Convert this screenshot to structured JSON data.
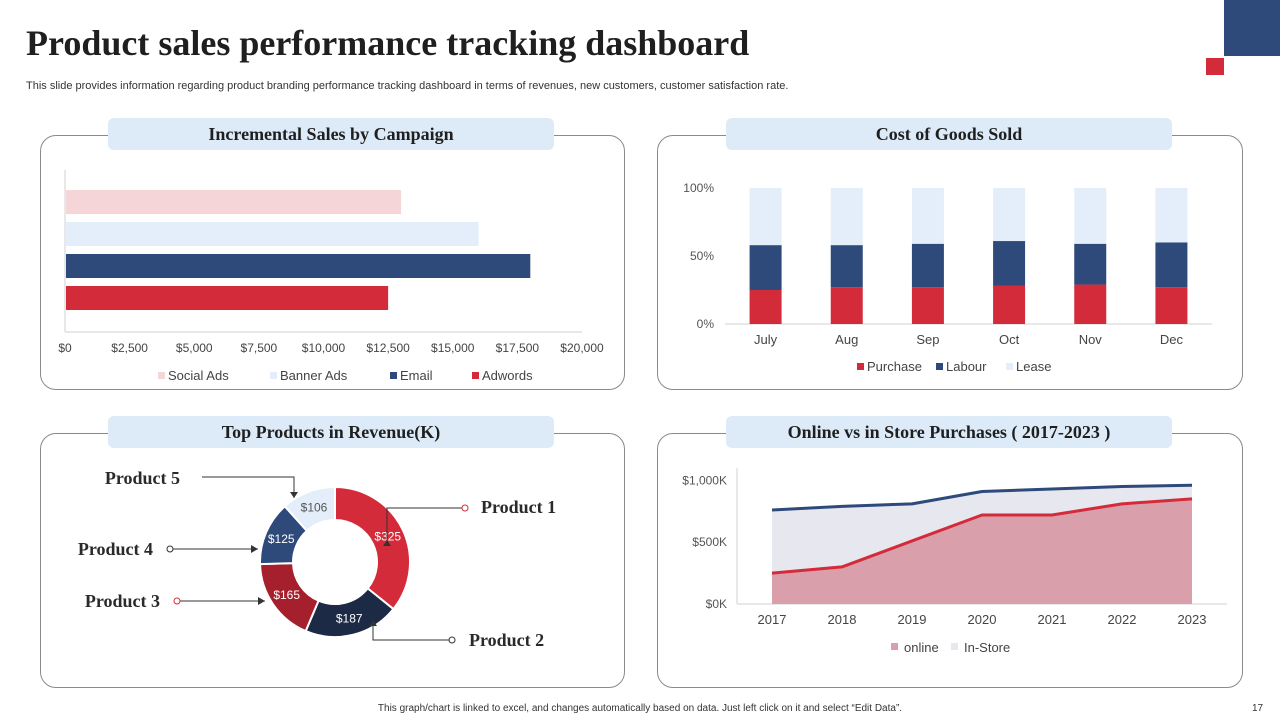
{
  "header": {
    "title": "Product sales performance tracking dashboard",
    "subtitle": "This slide provides information regarding product branding performance tracking dashboard in terms of revenues, new customers, customer satisfaction rate."
  },
  "footer": {
    "note": "This graph/chart is linked to excel, and changes automatically based on data. Just left click on it and select “Edit Data”.",
    "page_number": "17"
  },
  "colors": {
    "navy": "#2e4a7a",
    "red": "#d42b3a",
    "light_pink": "#f6d5d8",
    "light_blue": "#e3eefa",
    "dark_navy": "#1c2a45",
    "dark_red": "#a51f2c"
  },
  "chart_data": [
    {
      "id": "incremental_sales",
      "type": "bar",
      "orientation": "horizontal",
      "title": "Incremental Sales by Campaign",
      "series": [
        {
          "name": "Social Ads",
          "value": 13000,
          "color": "#f6d5d8"
        },
        {
          "name": "Banner Ads",
          "value": 16000,
          "color": "#e3eefa"
        },
        {
          "name": "Email",
          "value": 18000,
          "color": "#2e4a7a"
        },
        {
          "name": "Adwords",
          "value": 12500,
          "color": "#d42b3a"
        }
      ],
      "xlim": [
        0,
        20000
      ],
      "ticks": [
        0,
        2500,
        5000,
        7500,
        10000,
        12500,
        15000,
        17500,
        20000
      ],
      "tick_labels": [
        "$0",
        "$2,500",
        "$5,000",
        "$7,500",
        "$10,000",
        "$12,500",
        "$15,000",
        "$17,500",
        "$20,000"
      ],
      "legend": "bottom"
    },
    {
      "id": "cogs",
      "type": "bar",
      "stacked": true,
      "percent": true,
      "title": "Cost of  Goods Sold",
      "categories": [
        "July",
        "Aug",
        "Sep",
        "Oct",
        "Nov",
        "Dec"
      ],
      "series": [
        {
          "name": "Purchase",
          "values": [
            25,
            27,
            27,
            28,
            29,
            27
          ],
          "color": "#d42b3a"
        },
        {
          "name": "Labour",
          "values": [
            33,
            31,
            32,
            33,
            30,
            33
          ],
          "color": "#2e4a7a"
        },
        {
          "name": "Lease",
          "values": [
            42,
            42,
            41,
            39,
            41,
            40
          ],
          "color": "#e3eefa"
        }
      ],
      "ylim": [
        0,
        100
      ],
      "y_ticks": [
        0,
        50,
        100
      ],
      "y_tick_labels": [
        "0%",
        "50%",
        "100%"
      ],
      "legend": "bottom"
    },
    {
      "id": "top_products",
      "type": "pie",
      "donut": true,
      "title": "Top Products in Revenue(K)",
      "slices": [
        {
          "name": "Product 1",
          "value": 325,
          "label": "$325",
          "color": "#d42b3a"
        },
        {
          "name": "Product 2",
          "value": 187,
          "label": "$187",
          "color": "#1c2a45"
        },
        {
          "name": "Product 3",
          "value": 165,
          "label": "$165",
          "color": "#a51f2c"
        },
        {
          "name": "Product 4",
          "value": 125,
          "label": "$125",
          "color": "#2e4a7a"
        },
        {
          "name": "Product 5",
          "value": 106,
          "label": "$106",
          "color": "#e3eefa"
        }
      ]
    },
    {
      "id": "online_vs_store",
      "type": "area",
      "title": "Online vs in Store Purchases ( 2017-2023 )",
      "x": [
        "2017",
        "2018",
        "2019",
        "2020",
        "2021",
        "2022",
        "2023"
      ],
      "series": [
        {
          "name": "online",
          "values": [
            250,
            300,
            510,
            720,
            720,
            810,
            850
          ],
          "fill": "#d9a0ab",
          "line": "#d42b3a"
        },
        {
          "name": "In-Store",
          "values": [
            760,
            790,
            810,
            910,
            930,
            950,
            960
          ],
          "fill": "#e6e7ef",
          "line": "#2e4a7a"
        }
      ],
      "ylim": [
        0,
        1100
      ],
      "y_ticks": [
        0,
        500,
        1000
      ],
      "y_tick_labels": [
        "$0K",
        "$500K",
        "$1,000K"
      ],
      "legend": "bottom"
    }
  ]
}
